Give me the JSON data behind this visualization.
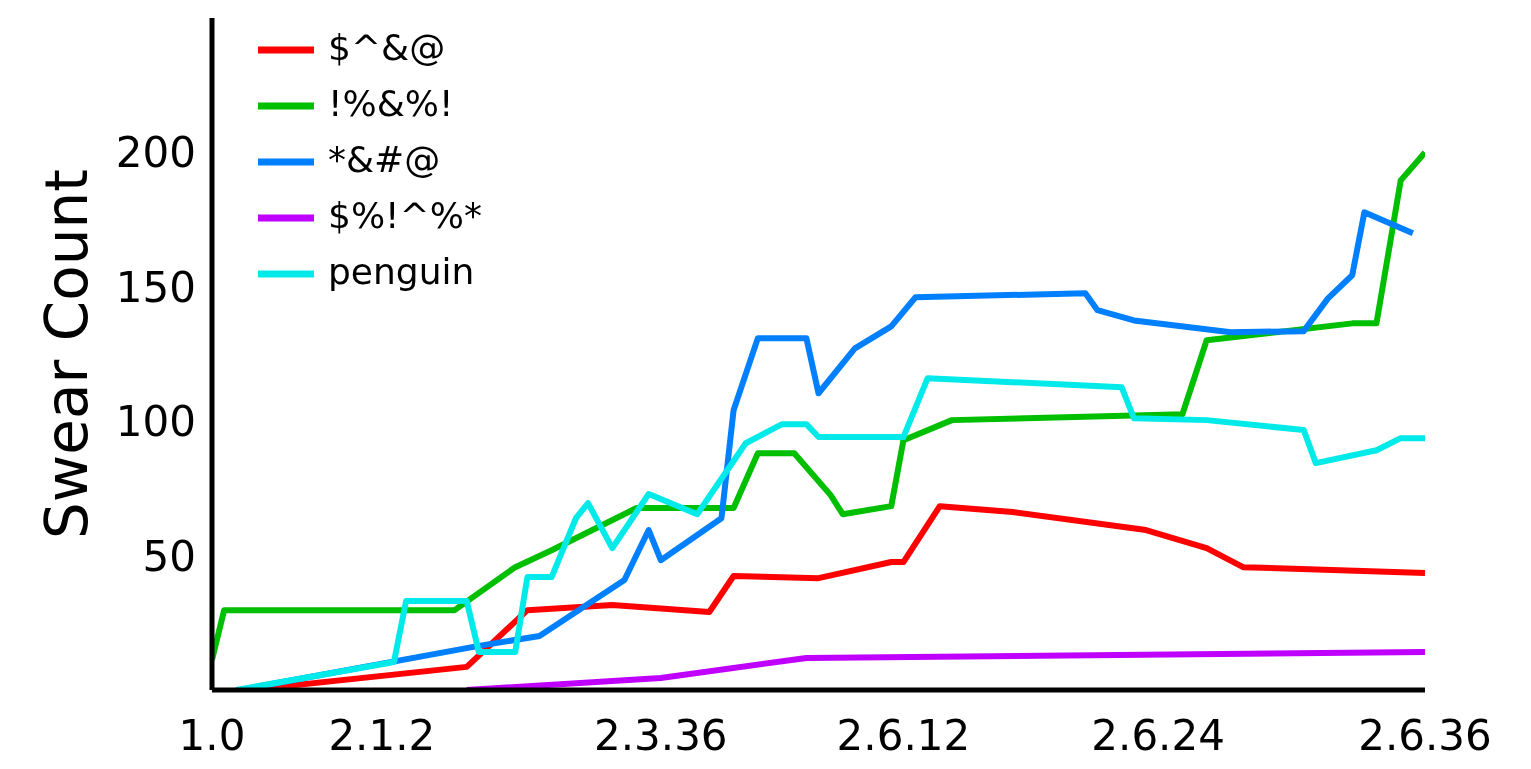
{
  "chart_data": {
    "type": "line",
    "ylabel": "Swear Count",
    "ylim": [
      0,
      250
    ],
    "categories": [
      "1.0",
      null,
      null,
      null,
      null,
      null,
      null,
      null,
      null,
      null,
      null,
      null,
      null,
      null,
      "2.1.2",
      null,
      null,
      null,
      null,
      null,
      null,
      null,
      null,
      null,
      null,
      null,
      null,
      null,
      null,
      null,
      null,
      null,
      null,
      null,
      null,
      null,
      null,
      "2.3.36",
      null,
      null,
      null,
      null,
      null,
      null,
      null,
      null,
      null,
      null,
      null,
      null,
      null,
      null,
      null,
      null,
      null,
      null,
      null,
      "2.6.12",
      null,
      null,
      null,
      null,
      null,
      null,
      null,
      null,
      null,
      null,
      null,
      null,
      null,
      null,
      null,
      null,
      null,
      null,
      null,
      null,
      "2.6.24",
      null,
      null,
      null,
      null,
      null,
      null,
      null,
      null,
      null,
      null,
      null,
      null,
      null,
      null,
      null,
      null,
      null,
      null,
      null,
      null,
      null,
      "2.6.36"
    ],
    "yticks": [
      50,
      100,
      150,
      200
    ],
    "grid": false,
    "legend": "top left",
    "marker": "none",
    "line_style": "solid",
    "series": [
      {
        "name": "$^&@",
        "color": "#ff0000",
        "values": [
          null,
          null,
          null,
          0,
          null,
          null,
          null,
          null,
          null,
          null,
          null,
          null,
          null,
          null,
          null,
          null,
          null,
          null,
          null,
          null,
          null,
          8.6,
          null,
          null,
          null,
          null,
          29.7,
          null,
          null,
          null,
          null,
          null,
          null,
          31.6,
          null,
          null,
          null,
          null,
          null,
          null,
          null,
          29,
          null,
          42.4,
          null,
          null,
          null,
          null,
          null,
          null,
          41.6,
          null,
          null,
          null,
          null,
          null,
          47.6,
          47.6,
          null,
          null,
          68.4,
          null,
          null,
          null,
          null,
          null,
          66.2,
          null,
          null,
          null,
          null,
          null,
          null,
          null,
          null,
          null,
          null,
          59.5,
          null,
          null,
          null,
          null,
          52.8,
          null,
          null,
          45.7,
          null,
          null,
          null,
          null,
          null,
          null,
          null,
          null,
          null,
          null,
          null,
          null,
          null,
          null,
          43.5
        ]
      },
      {
        "name": "!%&%!",
        "color": "#00bf00",
        "values": [
          11.2,
          29.7,
          null,
          null,
          null,
          null,
          null,
          null,
          null,
          null,
          null,
          null,
          null,
          null,
          null,
          null,
          null,
          null,
          null,
          null,
          29.7,
          null,
          null,
          null,
          null,
          45.7,
          null,
          null,
          52,
          null,
          null,
          null,
          null,
          null,
          null,
          67.7,
          null,
          null,
          null,
          null,
          null,
          null,
          null,
          67.7,
          null,
          88.1,
          null,
          null,
          88.1,
          null,
          null,
          72.5,
          65.4,
          null,
          null,
          null,
          68.4,
          92.9,
          null,
          null,
          null,
          100.4,
          null,
          null,
          null,
          null,
          null,
          null,
          null,
          null,
          null,
          null,
          null,
          null,
          null,
          null,
          null,
          null,
          null,
          null,
          102.6,
          null,
          130.1,
          null,
          null,
          null,
          null,
          null,
          null,
          null,
          null,
          null,
          null,
          null,
          136.4,
          null,
          136.4,
          null,
          189.6,
          null,
          200
        ]
      },
      {
        "name": "*&#@",
        "color": "#0080ff",
        "values": [
          null,
          null,
          null,
          null,
          1.5,
          null,
          null,
          null,
          null,
          null,
          null,
          null,
          null,
          null,
          null,
          null,
          null,
          null,
          null,
          null,
          null,
          null,
          16.4,
          null,
          null,
          null,
          null,
          20.1,
          null,
          null,
          null,
          null,
          null,
          null,
          40.9,
          null,
          59.5,
          48.3,
          null,
          null,
          null,
          null,
          63.9,
          104.1,
          null,
          130.9,
          null,
          null,
          null,
          130.9,
          110.4,
          null,
          null,
          127.1,
          null,
          null,
          135.3,
          null,
          146.1,
          null,
          null,
          null,
          null,
          null,
          null,
          null,
          null,
          null,
          null,
          null,
          null,
          null,
          147.6,
          141.3,
          null,
          null,
          137.5,
          null,
          null,
          null,
          null,
          null,
          null,
          null,
          133.1,
          null,
          null,
          null,
          null,
          null,
          133.5,
          null,
          145.7,
          null,
          154.3,
          177.7,
          null,
          null,
          null,
          169.9,
          null
        ]
      },
      {
        "name": "$%!^%*",
        "color": "#bf00ff",
        "values": [
          null,
          null,
          null,
          null,
          null,
          null,
          null,
          null,
          null,
          null,
          null,
          null,
          null,
          null,
          null,
          null,
          null,
          null,
          null,
          null,
          null,
          0,
          null,
          null,
          null,
          null,
          null,
          null,
          null,
          null,
          null,
          null,
          null,
          null,
          null,
          null,
          null,
          4.5,
          null,
          null,
          null,
          null,
          null,
          null,
          null,
          null,
          null,
          null,
          null,
          11.9,
          null,
          null,
          null,
          null,
          null,
          null,
          null,
          null,
          null,
          null,
          null,
          null,
          null,
          null,
          null,
          null,
          null,
          null,
          null,
          null,
          null,
          null,
          null,
          null,
          null,
          null,
          null,
          null,
          null,
          null,
          null,
          null,
          null,
          null,
          null,
          null,
          null,
          null,
          null,
          null,
          null,
          null,
          null,
          null,
          null,
          null,
          null,
          null,
          null,
          null,
          14.1
        ]
      },
      {
        "name": "penguin",
        "color": "#00eaea",
        "values": [
          null,
          null,
          0,
          null,
          null,
          null,
          null,
          null,
          null,
          null,
          null,
          null,
          null,
          null,
          null,
          10.4,
          33.1,
          null,
          null,
          null,
          null,
          33.1,
          14.1,
          null,
          null,
          14.1,
          42,
          null,
          42,
          null,
          63.9,
          69.5,
          null,
          52.8,
          null,
          null,
          72.9,
          null,
          null,
          null,
          65.4,
          null,
          null,
          null,
          91.8,
          null,
          null,
          98.9,
          null,
          98.9,
          94.1,
          null,
          null,
          null,
          null,
          null,
          null,
          94.1,
          null,
          116,
          null,
          null,
          null,
          null,
          null,
          null,
          null,
          null,
          null,
          null,
          null,
          null,
          null,
          null,
          null,
          112.6,
          101.1,
          null,
          null,
          null,
          null,
          null,
          100.4,
          null,
          null,
          null,
          null,
          null,
          null,
          null,
          96.7,
          84.4,
          null,
          null,
          null,
          null,
          89.2,
          null,
          93.7,
          null,
          93.7
        ]
      }
    ]
  }
}
